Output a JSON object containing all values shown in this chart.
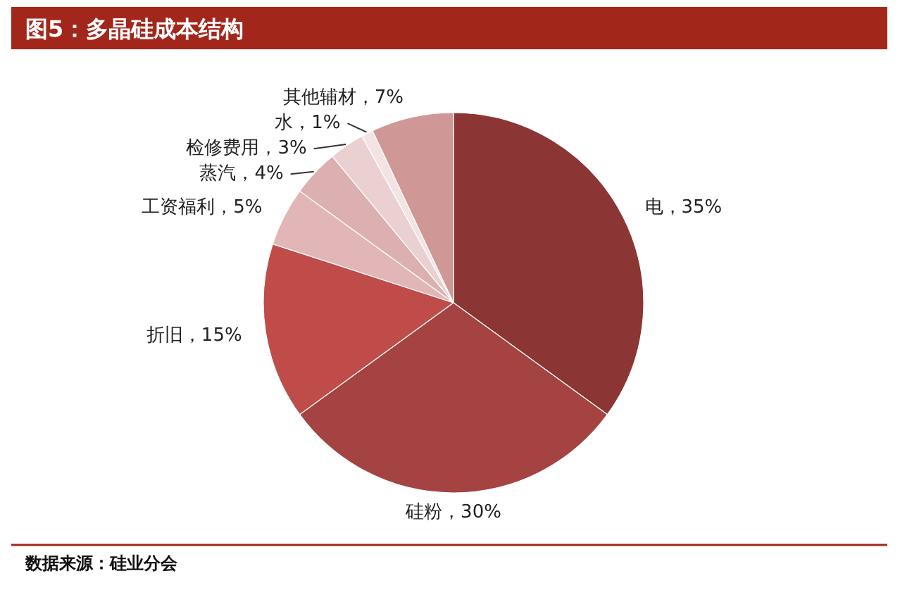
{
  "chart_data": {
    "type": "pie",
    "title": "图5：多晶硅成本结构",
    "categories": [
      "电",
      "硅粉",
      "折旧",
      "工资福利",
      "蒸汽",
      "检修费用",
      "水",
      "其他辅材"
    ],
    "values": [
      35,
      30,
      15,
      5,
      4,
      3,
      1,
      7
    ],
    "colors": [
      "#8b3535",
      "#a54242",
      "#c04c4a",
      "#e2b6b6",
      "#dcb0b0",
      "#ead0d0",
      "#f3e3e3",
      "#d09797"
    ],
    "value_labels": [
      "35%",
      "30%",
      "15%",
      "5%",
      "4%",
      "3%",
      "1%",
      "7%"
    ],
    "annotations": [
      "数据来源：硅业分会"
    ]
  }
}
